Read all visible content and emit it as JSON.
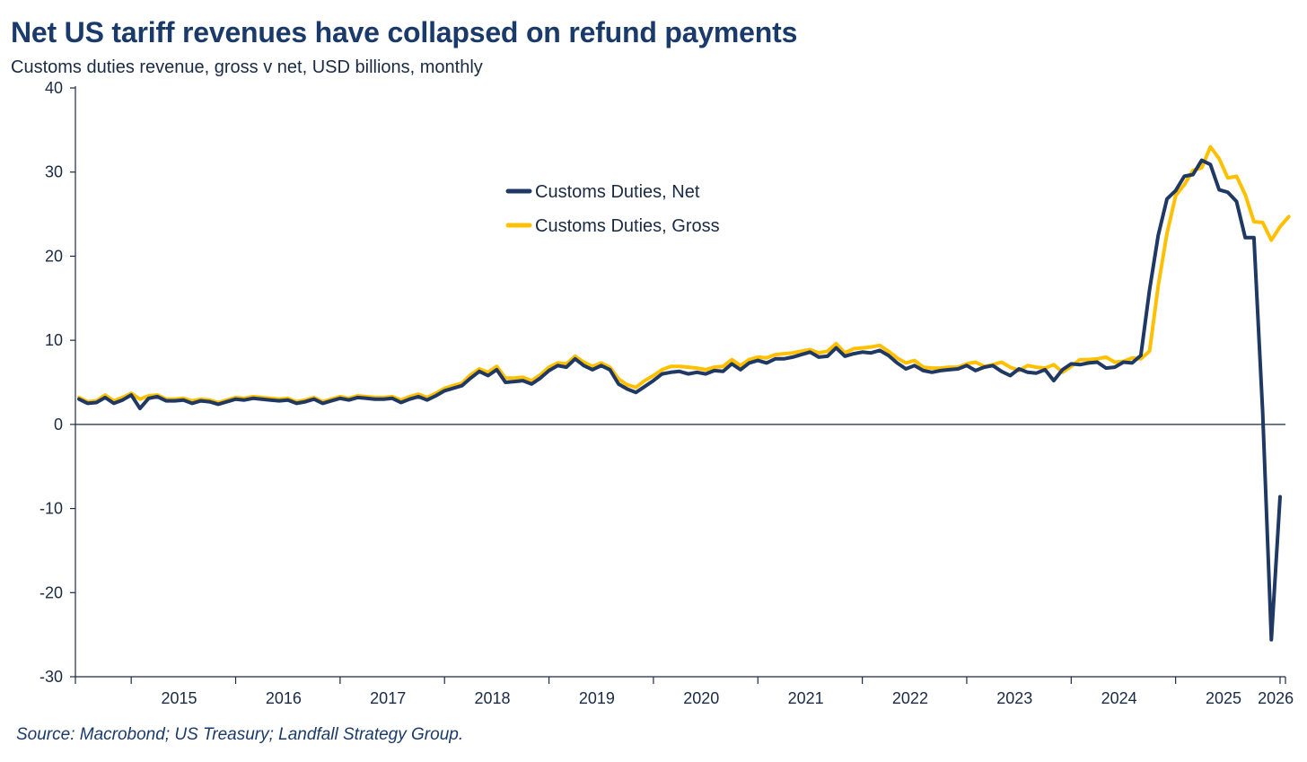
{
  "title": "Net US tariff revenues have collapsed on refund payments",
  "subtitle": "Customs duties revenue, gross v net, USD billions, monthly",
  "source": "Source: Macrobond; US Treasury; Landfall Strategy Group.",
  "colors": {
    "net": "#1f3864",
    "gross": "#ffc000",
    "axis": "#1a2a44"
  },
  "chart_data": {
    "type": "line",
    "x_start": "2014-07",
    "x_end": "2026-01",
    "ylim": [
      -30,
      40
    ],
    "yticks": [
      -30,
      -20,
      -10,
      0,
      10,
      20,
      30,
      40
    ],
    "year_labels": [
      "2015",
      "2016",
      "2017",
      "2018",
      "2019",
      "2020",
      "2021",
      "2022",
      "2023",
      "2024",
      "2025",
      "2026"
    ],
    "legend": {
      "position": "upper-center",
      "items": [
        "Customs Duties, Net",
        "Customs Duties, Gross"
      ]
    },
    "series": [
      {
        "name": "Customs Duties, Net",
        "values": [
          3.0,
          2.5,
          2.6,
          3.2,
          2.5,
          2.9,
          3.5,
          1.9,
          3.1,
          3.3,
          2.8,
          2.8,
          2.9,
          2.5,
          2.8,
          2.7,
          2.4,
          2.7,
          3.0,
          2.9,
          3.1,
          3.0,
          2.9,
          2.8,
          2.9,
          2.5,
          2.7,
          3.0,
          2.5,
          2.8,
          3.1,
          2.9,
          3.2,
          3.1,
          3.0,
          3.0,
          3.1,
          2.6,
          3.0,
          3.3,
          2.9,
          3.4,
          4.0,
          4.3,
          4.6,
          5.5,
          6.3,
          5.8,
          6.5,
          5.0,
          5.1,
          5.2,
          4.8,
          5.5,
          6.4,
          7.0,
          6.8,
          7.8,
          7.0,
          6.5,
          7.0,
          6.5,
          4.8,
          4.2,
          3.8,
          4.5,
          5.2,
          6.0,
          6.2,
          6.3,
          6.0,
          6.2,
          6.0,
          6.4,
          6.3,
          7.2,
          6.5,
          7.3,
          7.6,
          7.3,
          7.8,
          7.8,
          8.0,
          8.3,
          8.6,
          8.0,
          8.1,
          9.1,
          8.1,
          8.4,
          8.6,
          8.5,
          8.8,
          8.2,
          7.3,
          6.6,
          7.0,
          6.4,
          6.2,
          6.4,
          6.5,
          6.6,
          7.0,
          6.4,
          6.8,
          7.0,
          6.3,
          5.8,
          6.6,
          6.2,
          6.1,
          6.5,
          5.2,
          6.5,
          7.2,
          7.1,
          7.3,
          7.4,
          6.7,
          6.8,
          7.4,
          7.3,
          8.2,
          16.0,
          22.5,
          26.8,
          27.8,
          29.5,
          29.7,
          31.4,
          30.9,
          27.9,
          27.6,
          26.5,
          22.2,
          22.2,
          1.5,
          -25.6,
          -8.6
        ]
      },
      {
        "name": "Customs Duties, Gross",
        "values": [
          3.2,
          2.7,
          2.8,
          3.5,
          2.8,
          3.2,
          3.7,
          3.0,
          3.4,
          3.5,
          3.0,
          3.0,
          3.1,
          2.8,
          3.0,
          2.9,
          2.6,
          2.9,
          3.2,
          3.1,
          3.3,
          3.2,
          3.1,
          3.0,
          3.1,
          2.7,
          2.9,
          3.2,
          2.7,
          3.0,
          3.3,
          3.1,
          3.4,
          3.3,
          3.2,
          3.2,
          3.3,
          2.9,
          3.3,
          3.6,
          3.2,
          3.7,
          4.3,
          4.6,
          4.9,
          5.9,
          6.6,
          6.2,
          6.9,
          5.5,
          5.5,
          5.6,
          5.2,
          5.9,
          6.8,
          7.3,
          7.2,
          8.1,
          7.4,
          6.9,
          7.3,
          6.8,
          5.4,
          4.7,
          4.4,
          5.2,
          5.8,
          6.5,
          6.9,
          6.9,
          6.8,
          6.7,
          6.5,
          6.8,
          6.9,
          7.7,
          7.0,
          7.7,
          8.0,
          7.9,
          8.3,
          8.4,
          8.5,
          8.7,
          8.9,
          8.5,
          8.7,
          9.6,
          8.5,
          9.0,
          9.1,
          9.2,
          9.4,
          8.7,
          7.9,
          7.3,
          7.6,
          6.8,
          6.7,
          6.7,
          6.8,
          6.8,
          7.2,
          7.4,
          6.9,
          7.1,
          7.4,
          6.8,
          6.4,
          7.0,
          6.8,
          6.7,
          7.1,
          6.2,
          6.9,
          7.7,
          7.7,
          7.8,
          8.0,
          7.4,
          7.5,
          7.9,
          7.8,
          8.7,
          16.5,
          22.7,
          27.2,
          28.5,
          30.2,
          30.5,
          33.0,
          31.6,
          29.3,
          29.5,
          27.3,
          24.1,
          24.0,
          21.9,
          23.5,
          24.7
        ]
      }
    ]
  }
}
